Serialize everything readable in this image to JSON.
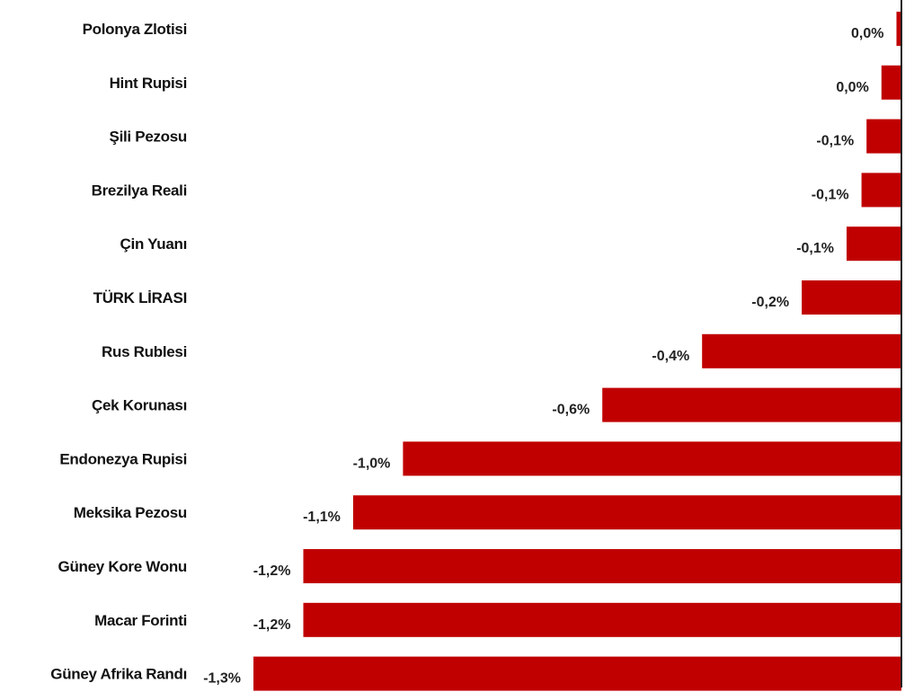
{
  "chart_data": {
    "type": "bar",
    "orientation": "horizontal",
    "title": "",
    "xlabel": "",
    "ylabel": "",
    "categories": [
      "Polonya Zlotisi",
      "Hint Rupisi",
      "Şili Pezosu",
      "Brezilya Reali",
      "Çin Yuanı",
      "TÜRK LİRASI",
      "Rus Rublesi",
      "Çek Korunası",
      "Endonezya Rupisi",
      "Meksika Pezosu",
      "Güney Kore Wonu",
      "Macar Forinti",
      "Güney Afrika Randı"
    ],
    "values": [
      -0.01,
      -0.04,
      -0.07,
      -0.08,
      -0.11,
      -0.2,
      -0.4,
      -0.6,
      -1.0,
      -1.1,
      -1.2,
      -1.2,
      -1.3
    ],
    "data_labels": [
      "0,0%",
      "0,0%",
      "-0,1%",
      "-0,1%",
      "-0,1%",
      "-0,2%",
      "-0,4%",
      "-0,6%",
      "-1,0%",
      "-1,1%",
      "-1,2%",
      "-1,2%",
      "-1,3%"
    ],
    "unit": "%",
    "xlim": [
      -1.3,
      0
    ],
    "grid": false,
    "legend": "none",
    "bar_color": "#c00000",
    "axis_color": "#222222"
  }
}
